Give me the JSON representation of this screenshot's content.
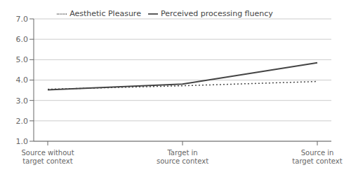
{
  "chart_data": {
    "type": "line",
    "categories": [
      "Source without target context",
      "Target in source context",
      "Source in target context"
    ],
    "series": [
      {
        "name": "Perceived processing fluency",
        "color": "#444444",
        "line_style": "solid",
        "values": [
          3.52,
          3.8,
          4.85
        ]
      },
      {
        "name": "Aesthetic Pleasure",
        "color": "#444444",
        "line_style": "dotted",
        "values": [
          3.55,
          3.72,
          3.93
        ]
      }
    ],
    "ylim": [
      1.0,
      7.0
    ],
    "yticks": [
      {
        "value": 1.0,
        "label": "1.0"
      },
      {
        "value": 2.0,
        "label": "2.0"
      },
      {
        "value": 3.0,
        "label": "3.0"
      },
      {
        "value": 4.0,
        "label": "4.0"
      },
      {
        "value": 5.0,
        "label": "5.0"
      },
      {
        "value": 6.0,
        "label": "6.0"
      },
      {
        "value": 7.0,
        "label": "7.0"
      }
    ],
    "grid": true,
    "legend": "top"
  }
}
